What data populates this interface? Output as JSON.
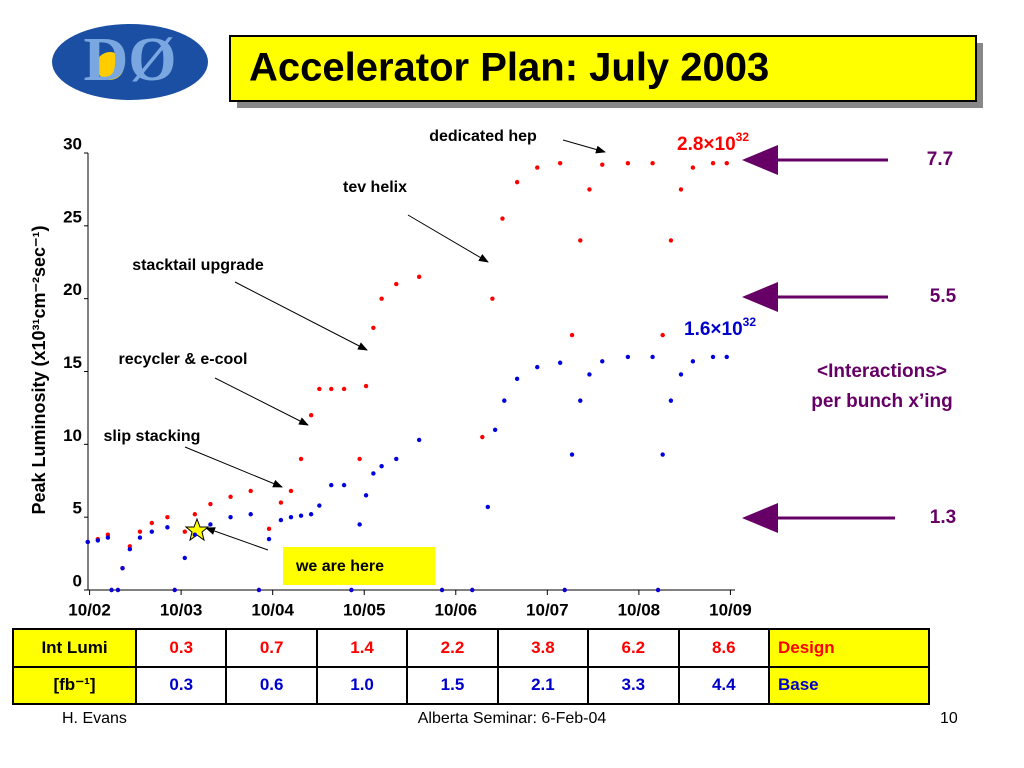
{
  "logo": "DØ",
  "title": "Accelerator Plan: July 2003",
  "chart_data": {
    "type": "scatter",
    "y_label": "Peak Luminosity (x10³¹cm⁻²sec⁻¹)",
    "xlim": [
      2002.7,
      2009.8
    ],
    "xticks": [
      {
        "value": 2002.75,
        "label": "10/02"
      },
      {
        "value": 2003.75,
        "label": "10/03"
      },
      {
        "value": 2004.75,
        "label": "10/04"
      },
      {
        "value": 2005.75,
        "label": "10/05"
      },
      {
        "value": 2006.75,
        "label": "10/06"
      },
      {
        "value": 2007.75,
        "label": "10/07"
      },
      {
        "value": 2008.75,
        "label": "10/08"
      },
      {
        "value": 2009.75,
        "label": "10/09"
      }
    ],
    "ylim": [
      0,
      30
    ],
    "yticks": [
      0,
      5,
      10,
      15,
      20,
      25,
      30
    ],
    "grid": false,
    "series": [
      {
        "color": "#ff0000",
        "x": [
          2002.73,
          2002.84,
          2002.95,
          2002.99,
          2003.06,
          2003.11,
          2003.19,
          2003.3,
          2003.43,
          2003.6,
          2003.68,
          2003.79,
          2003.9,
          2004.07,
          2004.29,
          2004.51,
          2004.6,
          2004.71,
          2004.84,
          2004.95,
          2005.06,
          2005.17,
          2005.26,
          2005.39,
          2005.53,
          2005.61,
          2005.7,
          2005.77,
          2005.85,
          2005.94,
          2006.1,
          2006.35,
          2006.6,
          2006.93,
          2007.04,
          2007.15,
          2007.26,
          2007.42,
          2007.64,
          2007.89,
          2007.94,
          2008.02,
          2008.11,
          2008.21,
          2008.35,
          2008.63,
          2008.9,
          2008.96,
          2009.01,
          2009.1,
          2009.21,
          2009.34,
          2009.56,
          2009.71
        ],
        "values": [
          3.3,
          3.5,
          3.8,
          0,
          0,
          1.5,
          3.0,
          4.0,
          4.6,
          5.0,
          0,
          4.0,
          5.2,
          5.9,
          6.4,
          6.8,
          0,
          4.2,
          6.0,
          6.8,
          9.0,
          12.0,
          13.8,
          13.8,
          13.8,
          0,
          9.0,
          14.0,
          18.0,
          20.0,
          21.0,
          21.5,
          0,
          0,
          10.5,
          20.0,
          25.5,
          28.0,
          29.0,
          29.3,
          0,
          17.5,
          24.0,
          27.5,
          29.2,
          29.3,
          29.3,
          0,
          17.5,
          24.0,
          27.5,
          29.0,
          29.3,
          29.3
        ]
      },
      {
        "color": "#0000dd",
        "x": [
          2002.73,
          2002.84,
          2002.95,
          2002.99,
          2003.06,
          2003.11,
          2003.19,
          2003.3,
          2003.43,
          2003.6,
          2003.68,
          2003.79,
          2003.9,
          2004.07,
          2004.29,
          2004.51,
          2004.6,
          2004.71,
          2004.84,
          2004.95,
          2005.06,
          2005.17,
          2005.26,
          2005.39,
          2005.53,
          2005.61,
          2005.7,
          2005.77,
          2005.85,
          2005.94,
          2006.1,
          2006.35,
          2006.6,
          2006.93,
          2007.1,
          2007.18,
          2007.28,
          2007.42,
          2007.64,
          2007.89,
          2007.94,
          2008.02,
          2008.11,
          2008.21,
          2008.35,
          2008.63,
          2008.9,
          2008.96,
          2009.01,
          2009.1,
          2009.21,
          2009.34,
          2009.56,
          2009.71
        ],
        "values": [
          3.3,
          3.4,
          3.6,
          0,
          0,
          1.5,
          2.8,
          3.6,
          4.0,
          4.3,
          0,
          2.2,
          3.8,
          4.5,
          5.0,
          5.2,
          0,
          3.5,
          4.8,
          5.0,
          5.1,
          5.2,
          5.8,
          7.2,
          7.2,
          0,
          4.5,
          6.5,
          8.0,
          8.5,
          9.0,
          10.3,
          0,
          0,
          5.7,
          11.0,
          13.0,
          14.5,
          15.3,
          15.6,
          0,
          9.3,
          13.0,
          14.8,
          15.7,
          16.0,
          16.0,
          0,
          9.3,
          13.0,
          14.8,
          15.7,
          16.0,
          16.0
        ]
      }
    ],
    "annotations": [
      "dedicated hep",
      "tev helix",
      "stacktail upgrade",
      "recycler & e-cool",
      "slip stacking",
      "we are here"
    ],
    "peak_labels": [
      {
        "base": "2.8×10",
        "exp": "32"
      },
      {
        "base": "1.6×10",
        "exp": "32"
      }
    ],
    "interactions": {
      "title": "<Interactions>",
      "subtitle": "per bunch x’ing",
      "values": [
        "7.7",
        "5.5",
        "1.3"
      ]
    }
  },
  "table": {
    "rows": [
      [
        "Int Lumi",
        "0.3",
        "0.7",
        "1.4",
        "2.2",
        "3.8",
        "6.2",
        "8.6",
        "Design"
      ],
      [
        "[fb⁻¹]",
        "0.3",
        "0.6",
        "1.0",
        "1.5",
        "2.1",
        "3.3",
        "4.4",
        "Base"
      ]
    ]
  },
  "footer": {
    "left": "H. Evans",
    "center": "Alberta Seminar: 6-Feb-04",
    "right": "10"
  }
}
